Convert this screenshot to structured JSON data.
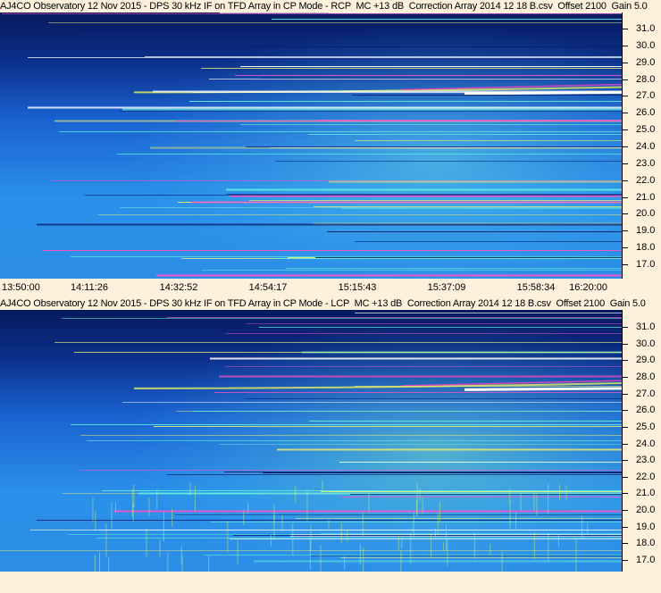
{
  "panels": [
    {
      "title": "AJ4CO Observatory 12 Nov 2015 - DPS 30 kHz IF on TFD Array in CP Mode - RCP  MC +13 dB  Correction Array 2014 12 18 B.csv  Offset 2100  Gain 5.0",
      "yticks": [
        "31.0",
        "30.0",
        "29.0",
        "28.0",
        "27.0",
        "26.0",
        "25.0",
        "24.0",
        "23.0",
        "22.0",
        "21.0",
        "20.0",
        "19.0",
        "18.0",
        "17.0"
      ],
      "xticks": [
        "13:50:00",
        "14:11:26",
        "14:32:52",
        "14:54:17",
        "15:15:43",
        "15:37:09",
        "15:58:34",
        "16:20:00"
      ]
    },
    {
      "title": "AJ4CO Observatory 12 Nov 2015 - DPS 30 kHz IF on TFD Array in CP Mode - LCP  MC +13 dB  Correction Array 2014 12 18 B.csv  Offset 2100  Gain 5.0",
      "yticks": [
        "31.0",
        "30.0",
        "29.0",
        "28.0",
        "27.0",
        "26.0",
        "25.0",
        "24.0",
        "23.0",
        "22.0",
        "21.0",
        "20.0",
        "19.0",
        "18.0",
        "17.0"
      ]
    }
  ]
}
